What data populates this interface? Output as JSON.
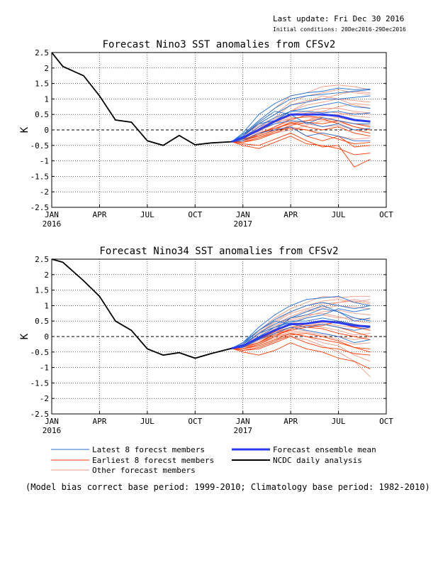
{
  "header": {
    "last_update": "Last update: Fri Dec 30 2016",
    "initial_conditions": "Initial conditions: 20Dec2016-29Dec2016"
  },
  "colors": {
    "latest": "#1f6fd6",
    "earliest": "#ff3a00",
    "other": "#ee9a86",
    "mean": "#2b3cf0",
    "analysis": "#000000",
    "zero_line": "#000000"
  },
  "legend": {
    "latest": "Latest 8 forecst members",
    "earliest": "Earliest 8 forecst members",
    "other": "Other forecast members",
    "mean": "Forecast ensemble mean",
    "analysis": "NCDC daily analysis"
  },
  "footnote": "(Model bias correct base period: 1999-2010; Climatology base period: 1982-2010)",
  "chart_data": [
    {
      "type": "line",
      "title": "Forecast Nino3 SST anomalies from CFSv2",
      "ylabel": "K",
      "xlabel": "",
      "ylim": [
        -2.5,
        2.5
      ],
      "xlim_months": [
        0,
        21
      ],
      "y_ticks": [
        "2.5",
        "2",
        "1.5",
        "1",
        "0.5",
        "0",
        "-0.5",
        "-1",
        "-1.5",
        "-2",
        "-2.5"
      ],
      "x_ticks": [
        {
          "m": 0,
          "label": "JAN",
          "year": "2016"
        },
        {
          "m": 3,
          "label": "APR"
        },
        {
          "m": 6,
          "label": "JUL"
        },
        {
          "m": 9,
          "label": "OCT"
        },
        {
          "m": 12,
          "label": "JAN",
          "year": "2017"
        },
        {
          "m": 15,
          "label": "APR"
        },
        {
          "m": 18,
          "label": "JUL"
        },
        {
          "m": 21,
          "label": "OCT"
        }
      ],
      "grid": true,
      "analysis": {
        "x": [
          0,
          0.7,
          2,
          3,
          4,
          5,
          6,
          7,
          8,
          9,
          10,
          11.3
        ],
        "y": [
          2.5,
          2.05,
          1.75,
          1.1,
          0.32,
          0.25,
          -0.35,
          -0.5,
          -0.18,
          -0.48,
          -0.42,
          -0.38
        ]
      },
      "mean": {
        "x": [
          11.3,
          12,
          13,
          14,
          15,
          16,
          17,
          18,
          19,
          20
        ],
        "y": [
          -0.38,
          -0.25,
          0.0,
          0.28,
          0.5,
          0.5,
          0.5,
          0.45,
          0.32,
          0.27
        ]
      },
      "members_x": [
        11.3,
        12,
        13,
        14,
        15,
        16,
        17,
        18,
        19,
        20
      ],
      "latest": [
        [
          -0.38,
          -0.1,
          0.5,
          0.85,
          1.1,
          1.2,
          1.25,
          1.35,
          1.3,
          1.32
        ],
        [
          -0.38,
          -0.15,
          0.3,
          0.7,
          1.0,
          1.1,
          1.15,
          1.2,
          1.25,
          1.3
        ],
        [
          -0.38,
          -0.2,
          0.2,
          0.5,
          0.8,
          0.9,
          1.0,
          1.0,
          1.05,
          1.1
        ],
        [
          -0.38,
          -0.25,
          0.1,
          0.4,
          0.6,
          0.6,
          0.55,
          0.6,
          0.5,
          0.55
        ],
        [
          -0.38,
          -0.3,
          0.0,
          0.2,
          0.3,
          0.25,
          0.1,
          0.2,
          0.0,
          0.05
        ],
        [
          -0.38,
          -0.35,
          -0.1,
          0.0,
          0.1,
          -0.2,
          -0.1,
          -0.2,
          -0.35,
          -0.35
        ],
        [
          -0.38,
          -0.2,
          0.25,
          0.6,
          0.5,
          0.2,
          0.4,
          0.3,
          0.2,
          0.2
        ],
        [
          -0.38,
          -0.15,
          0.2,
          0.3,
          0.6,
          0.7,
          0.8,
          0.9,
          0.75,
          0.7
        ]
      ],
      "earliest": [
        [
          -0.38,
          -0.45,
          -0.5,
          -0.3,
          -0.1,
          -0.35,
          -0.55,
          -0.5,
          -1.2,
          -0.95
        ],
        [
          -0.38,
          -0.5,
          -0.6,
          -0.4,
          -0.2,
          -0.45,
          -0.5,
          -0.6,
          -0.8,
          -0.75
        ],
        [
          -0.38,
          -0.4,
          -0.3,
          -0.1,
          0.1,
          -0.2,
          -0.35,
          -0.2,
          -0.55,
          -0.5
        ],
        [
          -0.38,
          -0.3,
          -0.2,
          0.0,
          0.25,
          0.1,
          0.0,
          0.1,
          -0.1,
          -0.2
        ],
        [
          -0.38,
          -0.35,
          -0.1,
          0.05,
          0.2,
          0.3,
          0.35,
          0.2,
          0.0,
          -0.1
        ],
        [
          -0.38,
          -0.3,
          -0.15,
          0.1,
          0.35,
          0.45,
          0.4,
          0.3,
          0.2,
          0.1
        ],
        [
          -0.38,
          -0.4,
          -0.25,
          -0.05,
          0.15,
          0.25,
          0.2,
          0.3,
          0.1,
          0.0
        ],
        [
          -0.38,
          -0.35,
          -0.2,
          0.0,
          0.05,
          0.0,
          -0.15,
          -0.3,
          -0.45,
          -0.4
        ]
      ],
      "other": [
        [
          -0.38,
          -0.2,
          0.3,
          0.7,
          1.1,
          1.2,
          1.4,
          1.45,
          1.4,
          1.3
        ],
        [
          -0.38,
          -0.25,
          0.2,
          0.5,
          0.9,
          1.1,
          1.2,
          1.3,
          1.2,
          1.15
        ],
        [
          -0.38,
          -0.3,
          0.05,
          0.35,
          0.6,
          0.8,
          0.9,
          1.0,
          0.95,
          0.9
        ],
        [
          -0.38,
          -0.3,
          0.1,
          0.3,
          0.5,
          0.6,
          0.7,
          0.7,
          0.6,
          0.55
        ],
        [
          -0.38,
          -0.35,
          -0.05,
          0.2,
          0.4,
          0.4,
          0.35,
          0.4,
          0.3,
          0.3
        ],
        [
          -0.38,
          -0.4,
          -0.15,
          0.05,
          0.2,
          0.2,
          0.1,
          0.15,
          0.0,
          0.05
        ],
        [
          -0.38,
          -0.35,
          -0.2,
          0.0,
          0.1,
          0.0,
          -0.1,
          -0.2,
          -0.3,
          -0.25
        ],
        [
          -0.38,
          -0.3,
          0.0,
          0.3,
          0.6,
          0.9,
          1.1,
          1.0,
          0.8,
          0.7
        ],
        [
          -0.38,
          -0.2,
          0.15,
          0.4,
          0.8,
          0.95,
          1.0,
          1.15,
          1.25,
          1.2
        ],
        [
          -0.38,
          -0.35,
          -0.1,
          0.1,
          0.3,
          0.5,
          0.6,
          0.55,
          0.45,
          0.4
        ],
        [
          -0.38,
          -0.4,
          -0.25,
          -0.1,
          0.0,
          0.15,
          0.3,
          0.25,
          0.1,
          0.0
        ],
        [
          -0.38,
          -0.3,
          0.0,
          0.25,
          0.45,
          0.55,
          0.6,
          0.75,
          0.85,
          0.8
        ],
        [
          -0.38,
          -0.25,
          0.05,
          0.25,
          0.35,
          0.45,
          0.35,
          0.3,
          0.2,
          0.15
        ],
        [
          -0.38,
          -0.35,
          -0.15,
          0.05,
          0.25,
          0.3,
          0.45,
          0.5,
          0.55,
          0.5
        ]
      ]
    },
    {
      "type": "line",
      "title": "Forecast Nino34 SST anomalies from CFSv2",
      "ylabel": "K",
      "xlabel": "",
      "ylim": [
        -2.5,
        2.5
      ],
      "xlim_months": [
        0,
        21
      ],
      "y_ticks": [
        "2.5",
        "2",
        "1.5",
        "1",
        "0.5",
        "0",
        "-0.5",
        "-1",
        "-1.5",
        "-2",
        "-2.5"
      ],
      "x_ticks": [
        {
          "m": 0,
          "label": "JAN",
          "year": "2016"
        },
        {
          "m": 3,
          "label": "APR"
        },
        {
          "m": 6,
          "label": "JUL"
        },
        {
          "m": 9,
          "label": "OCT"
        },
        {
          "m": 12,
          "label": "JAN",
          "year": "2017"
        },
        {
          "m": 15,
          "label": "APR"
        },
        {
          "m": 18,
          "label": "JUL"
        },
        {
          "m": 21,
          "label": "OCT"
        }
      ],
      "grid": true,
      "analysis": {
        "x": [
          0,
          0.7,
          2,
          3,
          4,
          5,
          6,
          7,
          8,
          9,
          10,
          11.3
        ],
        "y": [
          2.5,
          2.4,
          1.8,
          1.3,
          0.5,
          0.2,
          -0.4,
          -0.6,
          -0.52,
          -0.7,
          -0.55,
          -0.38
        ]
      },
      "mean": {
        "x": [
          11.3,
          12,
          13,
          14,
          15,
          16,
          17,
          18,
          19,
          20
        ],
        "y": [
          -0.38,
          -0.3,
          -0.05,
          0.2,
          0.4,
          0.42,
          0.5,
          0.45,
          0.35,
          0.32
        ]
      },
      "members_x": [
        11.3,
        12,
        13,
        14,
        15,
        16,
        17,
        18,
        19,
        20
      ],
      "latest": [
        [
          -0.38,
          -0.2,
          0.3,
          0.7,
          1.0,
          1.2,
          1.25,
          1.3,
          1.1,
          1.0
        ],
        [
          -0.38,
          -0.25,
          0.2,
          0.55,
          0.8,
          1.0,
          1.1,
          1.0,
          0.9,
          1.0
        ],
        [
          -0.38,
          -0.3,
          0.1,
          0.4,
          0.6,
          0.7,
          0.9,
          0.8,
          0.6,
          0.5
        ],
        [
          -0.38,
          -0.3,
          0.0,
          0.3,
          0.5,
          0.5,
          0.6,
          0.5,
          0.4,
          0.3
        ],
        [
          -0.38,
          -0.35,
          -0.1,
          0.1,
          0.3,
          0.2,
          0.1,
          0.0,
          -0.2,
          -0.1
        ],
        [
          -0.38,
          -0.2,
          0.2,
          0.5,
          0.4,
          0.3,
          0.4,
          0.3,
          0.2,
          0.3
        ],
        [
          -0.38,
          -0.3,
          0.0,
          0.2,
          0.6,
          0.8,
          1.0,
          0.8,
          0.5,
          0.6
        ],
        [
          -0.38,
          -0.25,
          0.1,
          0.3,
          0.45,
          0.6,
          0.7,
          0.9,
          0.8,
          0.9
        ]
      ],
      "earliest": [
        [
          -0.38,
          -0.5,
          -0.6,
          -0.45,
          -0.2,
          -0.4,
          -0.5,
          -0.7,
          -0.8,
          -1.05
        ],
        [
          -0.38,
          -0.45,
          -0.4,
          -0.2,
          0.0,
          -0.2,
          -0.35,
          -0.4,
          -0.55,
          -0.6
        ],
        [
          -0.38,
          -0.4,
          -0.3,
          -0.1,
          0.1,
          0.0,
          -0.1,
          -0.2,
          -0.35,
          -0.4
        ],
        [
          -0.38,
          -0.35,
          -0.2,
          0.05,
          0.2,
          0.3,
          0.25,
          0.1,
          0.0,
          -0.1
        ],
        [
          -0.38,
          -0.4,
          -0.25,
          0.0,
          0.25,
          0.35,
          0.4,
          0.3,
          0.15,
          0.0
        ],
        [
          -0.38,
          -0.3,
          -0.1,
          0.15,
          0.3,
          0.4,
          0.5,
          0.45,
          0.3,
          0.2
        ],
        [
          -0.38,
          -0.45,
          -0.35,
          -0.15,
          0.05,
          0.1,
          0.0,
          -0.15,
          -0.35,
          -0.5
        ],
        [
          -0.38,
          -0.35,
          -0.2,
          0.1,
          0.2,
          0.3,
          0.35,
          0.5,
          0.4,
          0.3
        ]
      ],
      "other": [
        [
          -0.38,
          -0.2,
          0.2,
          0.6,
          0.9,
          1.1,
          1.3,
          1.25,
          1.3,
          1.3
        ],
        [
          -0.38,
          -0.25,
          0.1,
          0.5,
          0.8,
          1.0,
          1.15,
          1.2,
          1.1,
          1.2
        ],
        [
          -0.38,
          -0.3,
          0.0,
          0.3,
          0.6,
          0.8,
          0.9,
          1.0,
          0.95,
          0.9
        ],
        [
          -0.38,
          -0.35,
          -0.1,
          0.2,
          0.4,
          0.6,
          0.7,
          0.6,
          0.6,
          0.55
        ],
        [
          -0.38,
          -0.35,
          -0.05,
          0.15,
          0.3,
          0.4,
          0.45,
          0.35,
          0.3,
          0.25
        ],
        [
          -0.38,
          -0.4,
          -0.2,
          0.0,
          0.15,
          0.2,
          0.1,
          0.0,
          -0.1,
          0.0
        ],
        [
          -0.38,
          -0.4,
          -0.3,
          -0.1,
          0.0,
          -0.1,
          -0.3,
          -0.5,
          -0.8,
          -1.3
        ],
        [
          -0.38,
          -0.35,
          -0.2,
          0.0,
          0.1,
          0.0,
          -0.2,
          -0.3,
          -0.6,
          -0.8
        ],
        [
          -0.38,
          -0.25,
          0.1,
          0.45,
          0.75,
          0.9,
          1.05,
          1.1,
          1.15,
          1.05
        ],
        [
          -0.38,
          -0.3,
          0.0,
          0.25,
          0.5,
          0.65,
          0.8,
          0.85,
          0.75,
          0.7
        ],
        [
          -0.38,
          -0.35,
          -0.15,
          0.1,
          0.25,
          0.35,
          0.3,
          0.2,
          0.05,
          0.1
        ],
        [
          -0.38,
          -0.3,
          0.05,
          0.35,
          0.55,
          0.7,
          0.75,
          0.65,
          0.5,
          0.45
        ],
        [
          -0.38,
          -0.4,
          -0.25,
          -0.05,
          0.1,
          0.15,
          0.05,
          -0.1,
          -0.25,
          -0.2
        ],
        [
          -0.38,
          -0.2,
          0.15,
          0.4,
          0.65,
          0.85,
          0.95,
          1.1,
          1.2,
          1.1
        ]
      ]
    }
  ]
}
